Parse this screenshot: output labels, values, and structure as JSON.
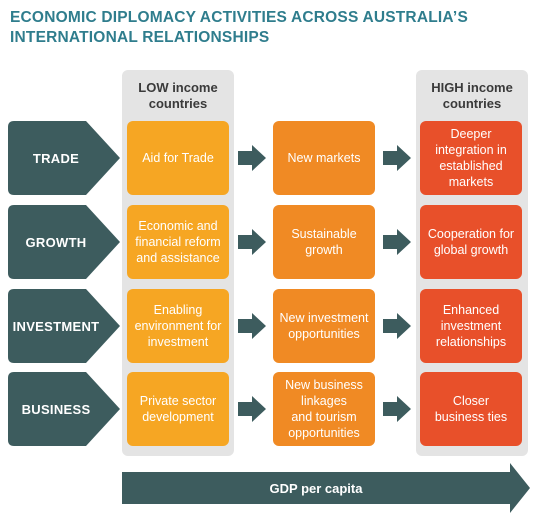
{
  "title": "ECONOMIC DIPLOMACY ACTIVITIES ACROSS AUSTRALIA’S\nINTERNATIONAL RELATIONSHIPS",
  "columns": {
    "low": "LOW income\ncountries",
    "high": "HIGH income\ncountries"
  },
  "rows": [
    {
      "label": "TRADE",
      "low": "Aid for Trade",
      "mid": "New markets",
      "high": "Deeper\nintegration in\nestablished\nmarkets"
    },
    {
      "label": "GROWTH",
      "low": "Economic and\nfinancial reform\nand assistance",
      "mid": "Sustainable\ngrowth",
      "high": "Cooperation for\nglobal growth"
    },
    {
      "label": "INVESTMENT",
      "low": "Enabling\nenvironment for\ninvestment",
      "mid": "New investment\nopportunities",
      "high": "Enhanced\ninvestment\nrelationships"
    },
    {
      "label": "BUSINESS",
      "low": "Private sector\ndevelopment",
      "mid": "New business\nlinkages\nand tourism\nopportunities",
      "high": "Closer\nbusiness ties"
    }
  ],
  "axis_label": "GDP per capita",
  "colors": {
    "title": "#2f7d8d",
    "row_label": "#3d5c5e",
    "low_box": "#f6a623",
    "mid_box": "#f08a24",
    "high_box": "#e8502a",
    "arrow": "#3d5c5e",
    "column_bg": "#e4e4e4"
  }
}
